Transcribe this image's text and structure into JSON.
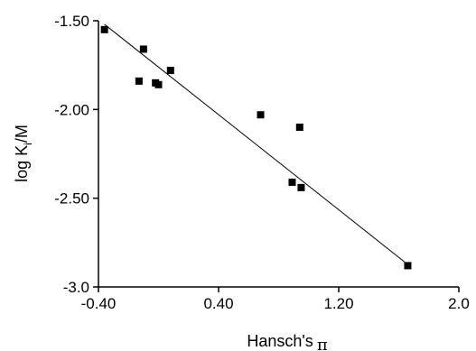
{
  "chart_data": {
    "type": "scatter",
    "title": "",
    "xlabel": "Hansch's",
    "xlabel_symbol": "π",
    "ylabel_main": "log K",
    "ylabel_sub": "i",
    "ylabel_tail": "/M",
    "xlim": [
      -0.4,
      2.0
    ],
    "ylim": [
      -3.0,
      -1.5
    ],
    "x_ticks": [
      -0.4,
      0.4,
      1.2,
      2.0
    ],
    "x_tick_labels": [
      "-0.40",
      "0.40",
      "1.20",
      "2.0"
    ],
    "y_ticks": [
      -1.5,
      -2.0,
      -2.5,
      -3.0
    ],
    "y_tick_labels": [
      "-1.50",
      "-2.00",
      "-2.50",
      "-3.0"
    ],
    "grid": false,
    "points": [
      {
        "x": -0.36,
        "y": -1.55
      },
      {
        "x": -0.1,
        "y": -1.66
      },
      {
        "x": -0.13,
        "y": -1.84
      },
      {
        "x": 0.0,
        "y": -1.86
      },
      {
        "x": -0.02,
        "y": -1.85
      },
      {
        "x": 0.08,
        "y": -1.78
      },
      {
        "x": 0.68,
        "y": -2.03
      },
      {
        "x": 0.94,
        "y": -2.1
      },
      {
        "x": 0.89,
        "y": -2.41
      },
      {
        "x": 0.95,
        "y": -2.44
      },
      {
        "x": 1.66,
        "y": -2.88
      }
    ],
    "fit_line": {
      "x": [
        -0.36,
        1.64
      ],
      "y": [
        -1.52,
        -2.86
      ]
    }
  }
}
